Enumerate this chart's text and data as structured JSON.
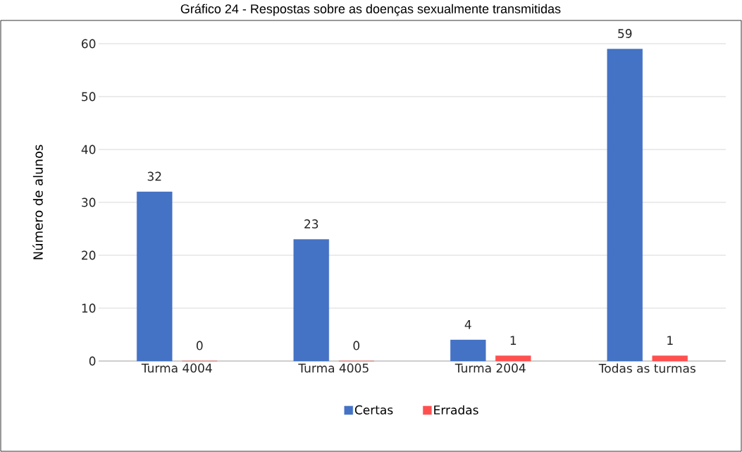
{
  "chart_data": {
    "type": "bar",
    "title": "Gráfico 24 - Respostas sobre as doenças sexualmente transmitidas",
    "ylabel": "Número de alunos",
    "categories": [
      "Turma 4004",
      "Turma 4005",
      "Turma 2004",
      "Todas as turmas"
    ],
    "series": [
      {
        "name": "Certas",
        "color": "#4472c4",
        "values": [
          32,
          23,
          4,
          59
        ],
        "value_labels": [
          "32",
          "23",
          "4",
          "59"
        ]
      },
      {
        "name": "Erradas",
        "color": "#ff5050",
        "values": [
          0,
          0,
          1,
          1
        ],
        "value_labels": [
          "0",
          "0",
          "1",
          "1"
        ]
      }
    ],
    "ylim": [
      0,
      60
    ],
    "yticks": [
      0,
      10,
      20,
      30,
      40,
      50,
      60
    ],
    "grid": "y",
    "legend": "bottom"
  }
}
